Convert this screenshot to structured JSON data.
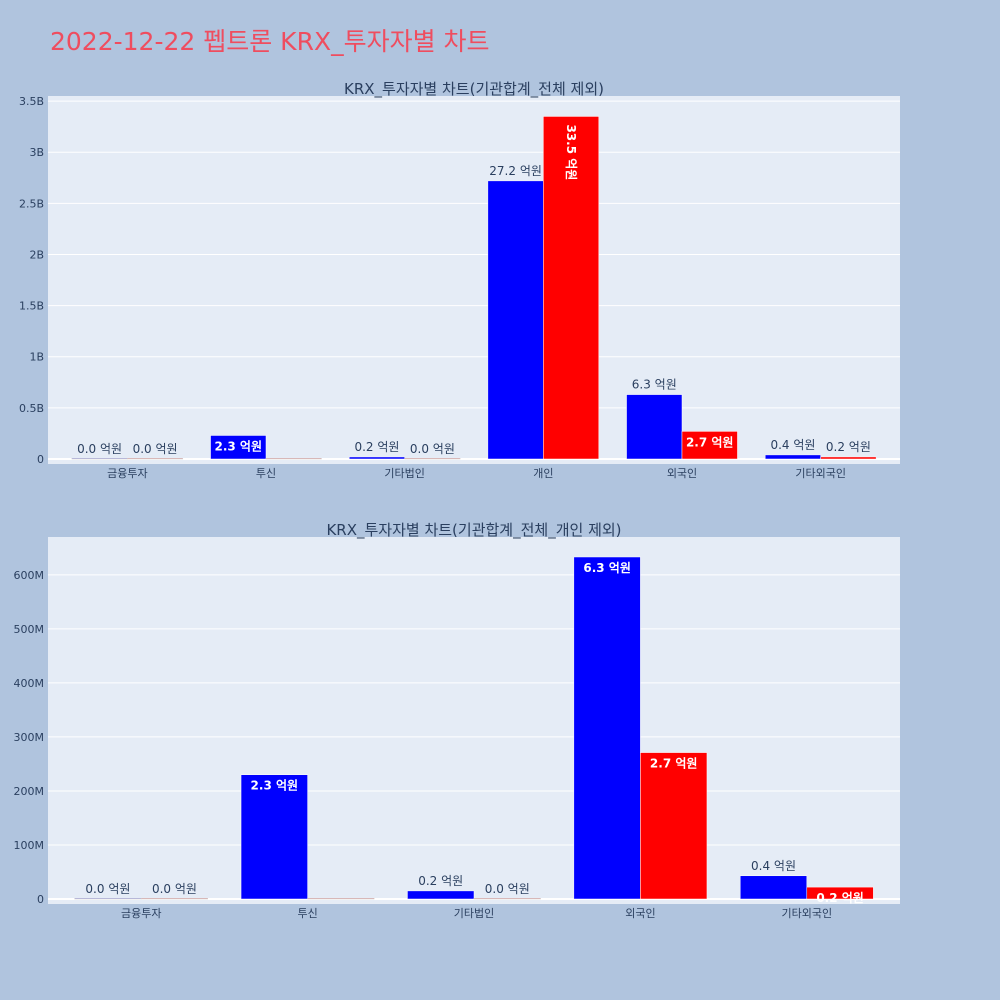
{
  "page_title": "2022-12-22 펩트론 KRX_투자자별 차트",
  "colors": {
    "series1": "#0000ff",
    "series2": "#ff0000",
    "title": "#ef4d5f",
    "plot_bg": "#e5ecf6",
    "page_bg": "#b0c4de"
  },
  "chart_data": [
    {
      "type": "bar",
      "title": "KRX_투자자별 차트(기관합계_전체 제외)",
      "categories": [
        "금융투자",
        "투신",
        "기타법인",
        "개인",
        "외국인",
        "기타외국인"
      ],
      "series": [
        {
          "values": [
            0,
            230000000,
            20000000,
            2720000000,
            630000000,
            40000000
          ],
          "labels": [
            "0.0 억원",
            "2.3 억원",
            "0.2 억원",
            "27.2 억원",
            "6.3 억원",
            "0.4 억원"
          ]
        },
        {
          "values": [
            0,
            0,
            0,
            3350000000,
            270000000,
            20000000
          ],
          "labels": [
            "0.0 억원",
            "",
            "0.0 억원",
            "33.5 억원",
            "2.7 억원",
            "0.2 억원"
          ]
        }
      ],
      "ylim": [
        0,
        3550000000
      ],
      "yticks": [
        0,
        500000000,
        1000000000,
        1500000000,
        2000000000,
        2500000000,
        3000000000,
        3500000000
      ],
      "ytick_labels": [
        "0",
        "0.5B",
        "1B",
        "1.5B",
        "2B",
        "2.5B",
        "3B",
        "3.5B"
      ],
      "grid": true
    },
    {
      "type": "bar",
      "title": "KRX_투자자별 차트(기관합계_전체_개인 제외)",
      "categories": [
        "금융투자",
        "투신",
        "기타법인",
        "외국인",
        "기타외국인"
      ],
      "series": [
        {
          "values": [
            0,
            230000000,
            15000000,
            633000000,
            43000000
          ],
          "labels": [
            "0.0 억원",
            "2.3 억원",
            "0.2 억원",
            "6.3 억원",
            "0.4 억원"
          ]
        },
        {
          "values": [
            0,
            0,
            0,
            271000000,
            22000000
          ],
          "labels": [
            "0.0 억원",
            "",
            "0.0 억원",
            "2.7 억원",
            "0.2 억원"
          ]
        }
      ],
      "ylim": [
        0,
        670000000
      ],
      "yticks": [
        0,
        100000000,
        200000000,
        300000000,
        400000000,
        500000000,
        600000000
      ],
      "ytick_labels": [
        "0",
        "100M",
        "200M",
        "300M",
        "400M",
        "500M",
        "600M"
      ],
      "grid": true
    }
  ]
}
